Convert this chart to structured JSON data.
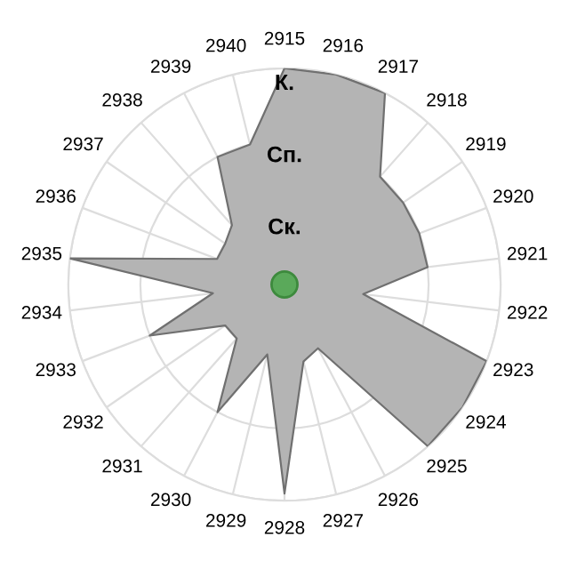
{
  "chart_data": {
    "type": "radar",
    "categories": [
      "2915",
      "2916",
      "2917",
      "2918",
      "2919",
      "2920",
      "2921",
      "2922",
      "2923",
      "2924",
      "2925",
      "2926",
      "2927",
      "2928",
      "2929",
      "2930",
      "2931",
      "2932",
      "2933",
      "2934",
      "2935",
      "2936",
      "2937",
      "2938",
      "2939",
      "2940"
    ],
    "series": [
      {
        "color": "#b4b4b4",
        "values": [
          3.0,
          3.0,
          3.0,
          2.0,
          2.0,
          2.0,
          2.0,
          1.1,
          3.0,
          3.0,
          3.0,
          1.0,
          1.1,
          2.9,
          1.0,
          2.0,
          1.0,
          1.0,
          2.0,
          1.0,
          3.0,
          1.0,
          1.0,
          1.1,
          2.0,
          2.0
        ]
      }
    ],
    "ylim": [
      0,
      3
    ],
    "yticks": [
      {
        "value": 1,
        "label": "Ск."
      },
      {
        "value": 2,
        "label": "Сп."
      },
      {
        "value": 3,
        "label": "К."
      }
    ],
    "grid": true,
    "marker": "none",
    "legend": false
  }
}
